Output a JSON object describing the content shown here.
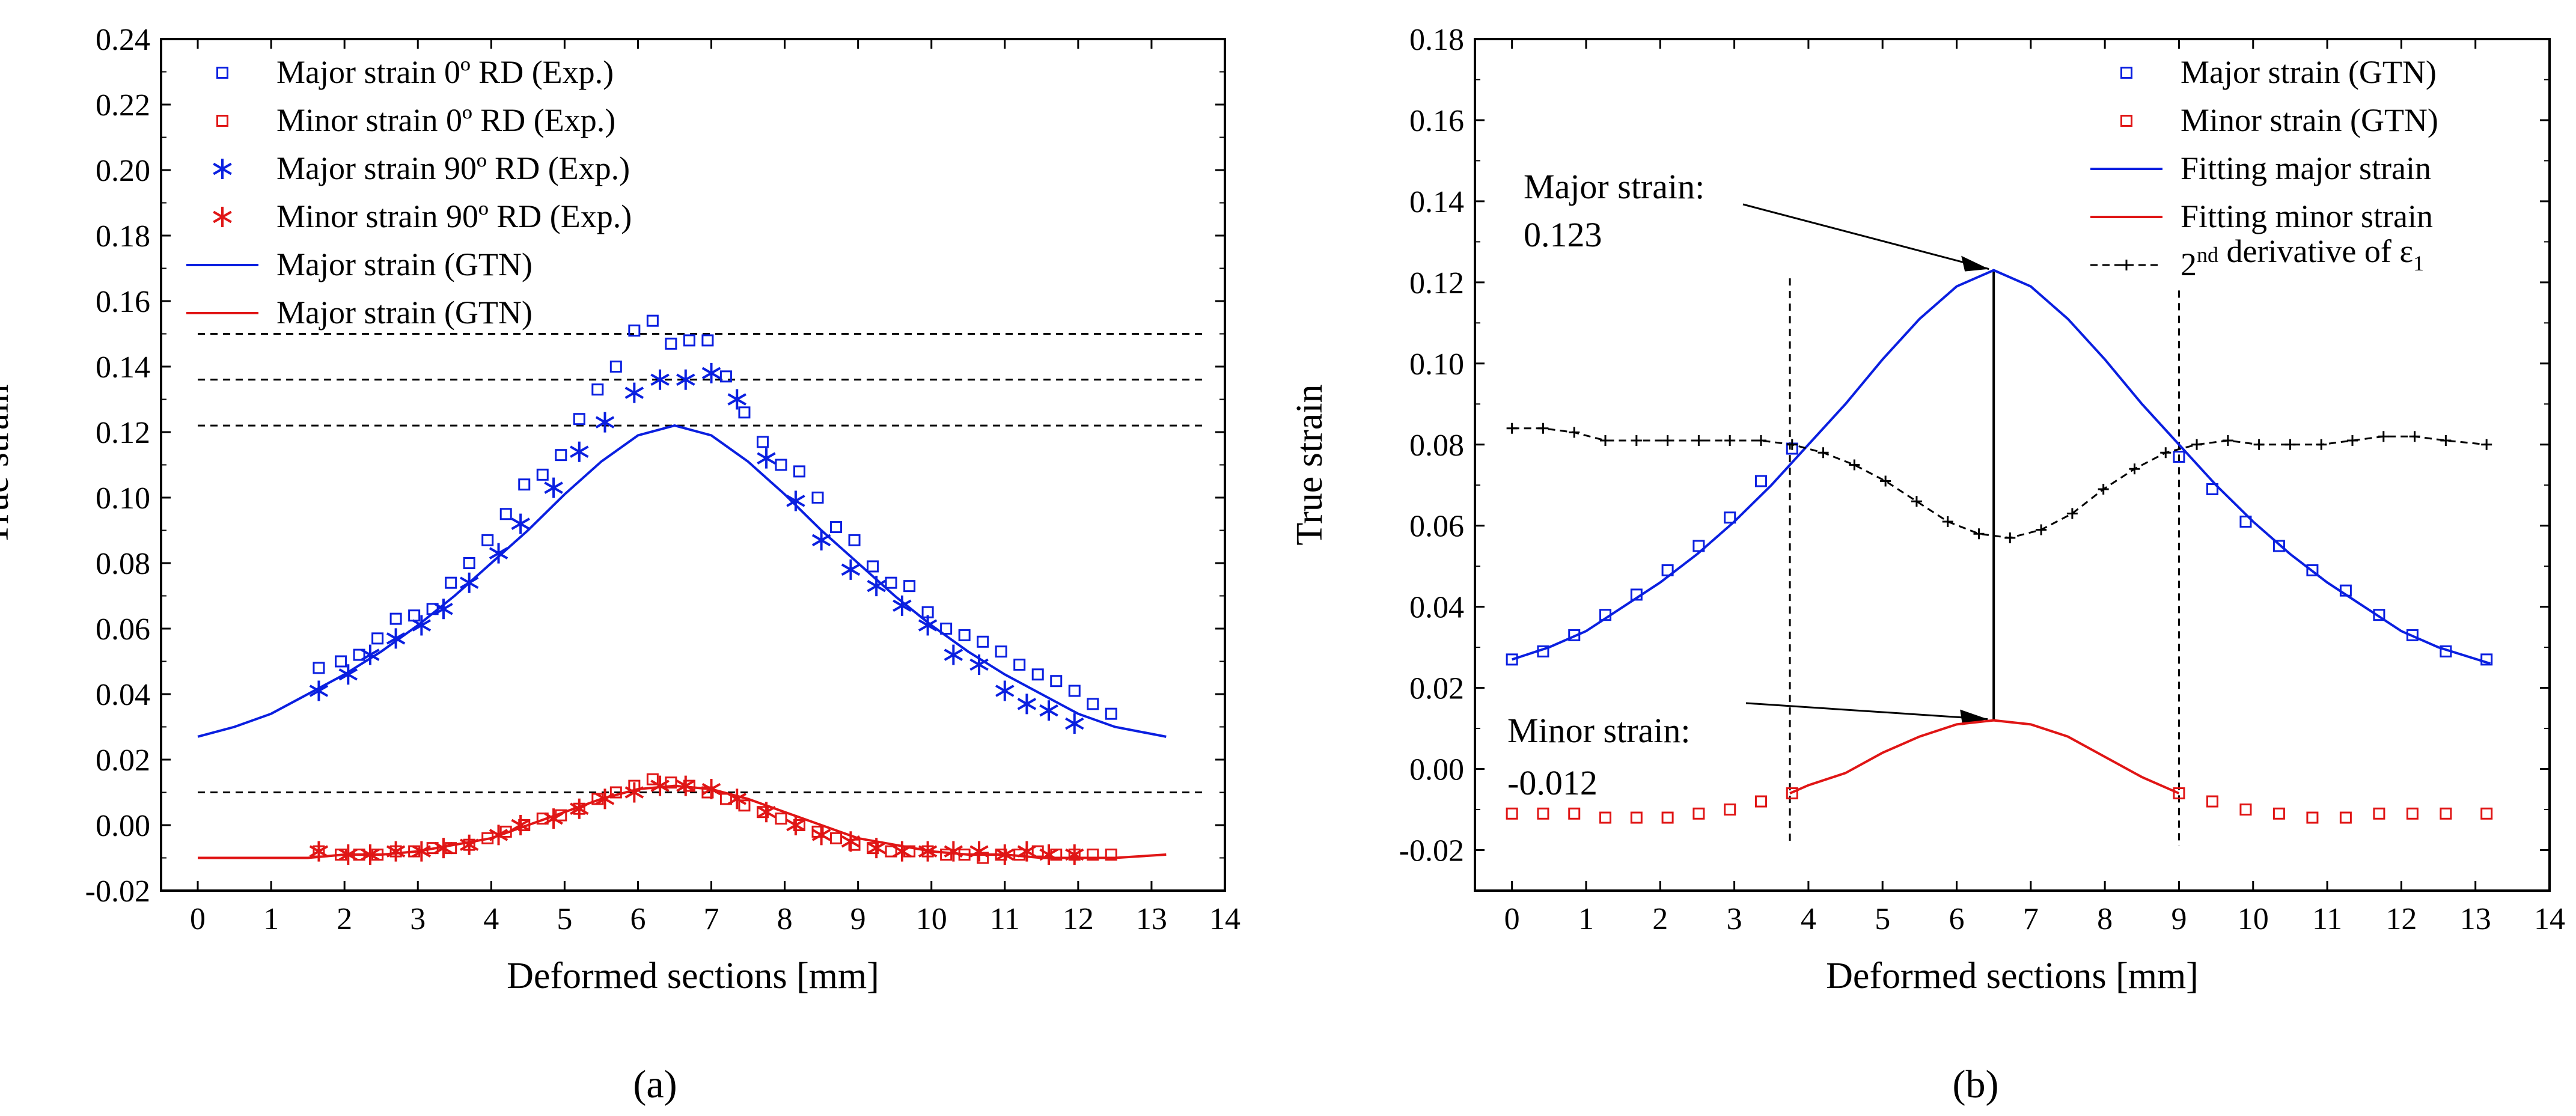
{
  "figure_labels": {
    "a": "(a)",
    "b": "(b)"
  },
  "annotations": {
    "major_label": "Major strain:",
    "major_value": "0.123",
    "minor_label": "Minor strain:",
    "minor_value": "-0.012"
  },
  "colors": {
    "blue": "#0a1fe0",
    "red": "#e01515",
    "black": "#000000",
    "frame": "#000000"
  },
  "chart_data": [
    {
      "type": "scatter",
      "title": "",
      "xlabel": "Deformed  sections [mm]",
      "ylabel": "True strain",
      "xlim": [
        -0.5,
        14
      ],
      "ylim": [
        -0.02,
        0.24
      ],
      "xticks": [
        0,
        1,
        2,
        3,
        4,
        5,
        6,
        7,
        8,
        9,
        10,
        11,
        12,
        13,
        14
      ],
      "yticks": [
        -0.02,
        0.0,
        0.02,
        0.04,
        0.06,
        0.08,
        0.1,
        0.12,
        0.14,
        0.16,
        0.18,
        0.2,
        0.22,
        0.24
      ],
      "ytick_labels": [
        "-0.02",
        "0.00",
        "0.02",
        "0.04",
        "0.06",
        "0.08",
        "0.10",
        "0.12",
        "0.14",
        "0.16",
        "0.18",
        "0.20",
        "0.22",
        "0.24"
      ],
      "legend_position": "top-left",
      "reference_lines": [
        0.15,
        0.136,
        0.122,
        0.01
      ],
      "reference_x": [
        0,
        13
      ],
      "series": [
        {
          "name": "Major strain 0º RD (Exp.)",
          "marker": "square",
          "color": "blue",
          "x": [
            1.65,
            1.95,
            2.2,
            2.45,
            2.7,
            2.95,
            3.2,
            3.45,
            3.7,
            3.95,
            4.2,
            4.45,
            4.7,
            4.95,
            5.2,
            5.45,
            5.7,
            5.95,
            6.2,
            6.45,
            6.7,
            6.95,
            7.2,
            7.45,
            7.7,
            7.95,
            8.2,
            8.45,
            8.7,
            8.95,
            9.2,
            9.45,
            9.7,
            9.95,
            10.2,
            10.45,
            10.7,
            10.95,
            11.2,
            11.45,
            11.7,
            11.95,
            12.2,
            12.45
          ],
          "y": [
            0.048,
            0.05,
            0.052,
            0.057,
            0.063,
            0.064,
            0.066,
            0.074,
            0.08,
            0.087,
            0.095,
            0.104,
            0.107,
            0.113,
            0.124,
            0.133,
            0.14,
            0.151,
            0.154,
            0.147,
            0.148,
            0.148,
            0.137,
            0.126,
            0.117,
            0.11,
            0.108,
            0.1,
            0.091,
            0.087,
            0.079,
            0.074,
            0.073,
            0.065,
            0.06,
            0.058,
            0.056,
            0.053,
            0.049,
            0.046,
            0.044,
            0.041,
            0.037,
            0.034
          ]
        },
        {
          "name": "Minor strain 0º RD (Exp.)",
          "marker": "square",
          "color": "red",
          "x": [
            1.65,
            1.95,
            2.2,
            2.45,
            2.7,
            2.95,
            3.2,
            3.45,
            3.7,
            3.95,
            4.2,
            4.45,
            4.7,
            4.95,
            5.2,
            5.45,
            5.7,
            5.95,
            6.2,
            6.45,
            6.7,
            6.95,
            7.2,
            7.45,
            7.7,
            7.95,
            8.2,
            8.45,
            8.7,
            8.95,
            9.2,
            9.45,
            9.7,
            9.95,
            10.2,
            10.45,
            10.7,
            10.95,
            11.2,
            11.45,
            11.7,
            11.95,
            12.2,
            12.45
          ],
          "y": [
            -0.008,
            -0.009,
            -0.009,
            -0.009,
            -0.008,
            -0.008,
            -0.007,
            -0.007,
            -0.006,
            -0.004,
            -0.002,
            0.0,
            0.002,
            0.003,
            0.005,
            0.008,
            0.01,
            0.012,
            0.014,
            0.013,
            0.012,
            0.01,
            0.008,
            0.006,
            0.004,
            0.002,
            0.0,
            -0.002,
            -0.004,
            -0.006,
            -0.007,
            -0.008,
            -0.008,
            -0.008,
            -0.009,
            -0.009,
            -0.01,
            -0.009,
            -0.009,
            -0.008,
            -0.009,
            -0.009,
            -0.009,
            -0.009
          ]
        },
        {
          "name": "Major strain 90º RD (Exp.)",
          "marker": "asterisk",
          "color": "blue",
          "x": [
            1.65,
            2.05,
            2.35,
            2.7,
            3.05,
            3.35,
            3.7,
            4.1,
            4.4,
            4.85,
            5.2,
            5.55,
            5.95,
            6.3,
            6.65,
            7.0,
            7.35,
            7.75,
            8.15,
            8.5,
            8.9,
            9.25,
            9.6,
            9.95,
            10.3,
            10.65,
            11.0,
            11.3,
            11.6,
            11.95
          ],
          "y": [
            0.041,
            0.046,
            0.052,
            0.057,
            0.061,
            0.066,
            0.074,
            0.083,
            0.092,
            0.103,
            0.114,
            0.123,
            0.132,
            0.136,
            0.136,
            0.138,
            0.13,
            0.112,
            0.099,
            0.087,
            0.078,
            0.073,
            0.067,
            0.061,
            0.052,
            0.049,
            0.041,
            0.037,
            0.035,
            0.031
          ]
        },
        {
          "name": "Minor strain 90º RD (Exp.)",
          "marker": "asterisk",
          "color": "red",
          "x": [
            1.65,
            2.05,
            2.35,
            2.7,
            3.05,
            3.35,
            3.7,
            4.1,
            4.4,
            4.85,
            5.2,
            5.55,
            5.95,
            6.3,
            6.65,
            7.0,
            7.35,
            7.75,
            8.15,
            8.5,
            8.9,
            9.25,
            9.6,
            9.95,
            10.3,
            10.65,
            11.0,
            11.3,
            11.6,
            11.95
          ],
          "y": [
            -0.008,
            -0.009,
            -0.009,
            -0.008,
            -0.008,
            -0.007,
            -0.006,
            -0.003,
            0.0,
            0.002,
            0.005,
            0.008,
            0.01,
            0.012,
            0.012,
            0.011,
            0.008,
            0.004,
            0.0,
            -0.003,
            -0.005,
            -0.007,
            -0.008,
            -0.008,
            -0.008,
            -0.008,
            -0.009,
            -0.008,
            -0.009,
            -0.009
          ]
        },
        {
          "name": "Major strain (GTN)",
          "marker": "line",
          "color": "blue",
          "x": [
            0,
            0.5,
            1,
            1.5,
            2,
            2.5,
            3,
            3.5,
            4,
            4.5,
            5,
            5.5,
            6,
            6.5,
            7,
            7.5,
            8,
            8.5,
            9,
            9.5,
            10,
            10.5,
            11,
            11.5,
            12,
            12.5,
            13.2
          ],
          "y": [
            0.027,
            0.03,
            0.034,
            0.04,
            0.046,
            0.053,
            0.061,
            0.07,
            0.08,
            0.09,
            0.101,
            0.111,
            0.119,
            0.122,
            0.119,
            0.111,
            0.101,
            0.09,
            0.08,
            0.07,
            0.061,
            0.053,
            0.046,
            0.04,
            0.034,
            0.03,
            0.027
          ]
        },
        {
          "name": "Major strain (GTN)",
          "marker": "line",
          "color": "red",
          "x": [
            0,
            0.5,
            1,
            1.5,
            2,
            2.5,
            3,
            3.5,
            4,
            4.5,
            5,
            5.5,
            6,
            6.5,
            7,
            7.5,
            8,
            8.5,
            9,
            9.5,
            10,
            10.5,
            11,
            11.5,
            12,
            12.5,
            13.2
          ],
          "y": [
            -0.01,
            -0.01,
            -0.01,
            -0.01,
            -0.009,
            -0.009,
            -0.008,
            -0.006,
            -0.004,
            0.0,
            0.004,
            0.008,
            0.011,
            0.012,
            0.011,
            0.008,
            0.004,
            0.0,
            -0.004,
            -0.006,
            -0.008,
            -0.009,
            -0.009,
            -0.01,
            -0.01,
            -0.01,
            -0.009
          ]
        }
      ]
    },
    {
      "type": "scatter",
      "title": "",
      "xlabel": "Deformed sections [mm]",
      "ylabel": "True strain",
      "xlim": [
        -0.5,
        14
      ],
      "ylim": [
        -0.03,
        0.18
      ],
      "xticks": [
        0,
        1,
        2,
        3,
        4,
        5,
        6,
        7,
        8,
        9,
        10,
        11,
        12,
        13,
        14
      ],
      "yticks": [
        -0.02,
        0.0,
        0.02,
        0.04,
        0.06,
        0.08,
        0.1,
        0.12,
        0.14,
        0.16,
        0.18
      ],
      "ytick_labels": [
        "-0.02",
        "0.00",
        "0.02",
        "0.04",
        "0.06",
        "0.08",
        "0.10",
        "0.12",
        "0.14",
        "0.16",
        "0.18"
      ],
      "legend_position": "top-right",
      "vertical_lines": [
        3.75,
        9.0,
        6.5
      ],
      "series": [
        {
          "name": "Major strain (GTN)",
          "marker": "square",
          "color": "blue",
          "x": [
            0,
            0.42,
            0.84,
            1.26,
            1.68,
            2.1,
            2.52,
            2.94,
            3.36,
            3.78,
            9.0,
            9.45,
            9.9,
            10.35,
            10.8,
            11.25,
            11.7,
            12.15,
            12.6,
            13.15
          ],
          "y": [
            0.027,
            0.029,
            0.033,
            0.038,
            0.043,
            0.049,
            0.055,
            0.062,
            0.071,
            0.079,
            0.077,
            0.069,
            0.061,
            0.055,
            0.049,
            0.044,
            0.038,
            0.033,
            0.029,
            0.027
          ]
        },
        {
          "name": "Minor strain (GTN)",
          "marker": "square",
          "color": "red",
          "x": [
            0,
            0.42,
            0.84,
            1.26,
            1.68,
            2.1,
            2.52,
            2.94,
            3.36,
            3.78,
            9.0,
            9.45,
            9.9,
            10.35,
            10.8,
            11.25,
            11.7,
            12.15,
            12.6,
            13.15
          ],
          "y": [
            -0.011,
            -0.011,
            -0.011,
            -0.012,
            -0.012,
            -0.012,
            -0.011,
            -0.01,
            -0.008,
            -0.006,
            -0.006,
            -0.008,
            -0.01,
            -0.011,
            -0.012,
            -0.012,
            -0.011,
            -0.011,
            -0.011,
            -0.011
          ]
        },
        {
          "name": "Fitting major strain",
          "marker": "line",
          "color": "blue",
          "x": [
            0,
            0.5,
            1,
            1.5,
            2,
            2.5,
            3,
            3.5,
            4,
            4.5,
            5,
            5.5,
            6,
            6.5,
            7,
            7.5,
            8,
            8.5,
            9,
            9.5,
            10,
            10.5,
            11,
            11.5,
            12,
            12.5,
            13.2
          ],
          "y": [
            0.027,
            0.03,
            0.034,
            0.04,
            0.046,
            0.053,
            0.061,
            0.07,
            0.08,
            0.09,
            0.101,
            0.111,
            0.119,
            0.123,
            0.119,
            0.111,
            0.101,
            0.09,
            0.08,
            0.07,
            0.061,
            0.053,
            0.046,
            0.04,
            0.034,
            0.03,
            0.026
          ]
        },
        {
          "name": "Fitting minor strain",
          "marker": "line",
          "color": "red",
          "x": [
            3.75,
            4.0,
            4.5,
            5.0,
            5.5,
            6.0,
            6.5,
            7.0,
            7.5,
            8.0,
            8.5,
            9.0
          ],
          "y": [
            -0.006,
            -0.004,
            -0.001,
            0.004,
            0.008,
            0.011,
            0.012,
            0.011,
            0.008,
            0.003,
            -0.002,
            -0.006
          ]
        },
        {
          "name": "2nd derivative of ε1",
          "marker": "dashed-plus",
          "color": "black",
          "x": [
            0,
            0.42,
            0.84,
            1.26,
            1.68,
            2.1,
            2.52,
            2.94,
            3.36,
            3.78,
            4.2,
            4.62,
            5.04,
            5.46,
            5.88,
            6.3,
            6.72,
            7.14,
            7.56,
            7.98,
            8.4,
            8.82,
            9.24,
            9.66,
            10.08,
            10.5,
            10.92,
            11.34,
            11.76,
            12.18,
            12.6,
            13.15
          ],
          "y": [
            0.084,
            0.084,
            0.083,
            0.081,
            0.081,
            0.081,
            0.081,
            0.081,
            0.081,
            0.08,
            0.078,
            0.075,
            0.071,
            0.066,
            0.061,
            0.058,
            0.057,
            0.059,
            0.063,
            0.069,
            0.074,
            0.078,
            0.08,
            0.081,
            0.08,
            0.08,
            0.08,
            0.081,
            0.082,
            0.082,
            0.081,
            0.08
          ]
        }
      ]
    }
  ]
}
